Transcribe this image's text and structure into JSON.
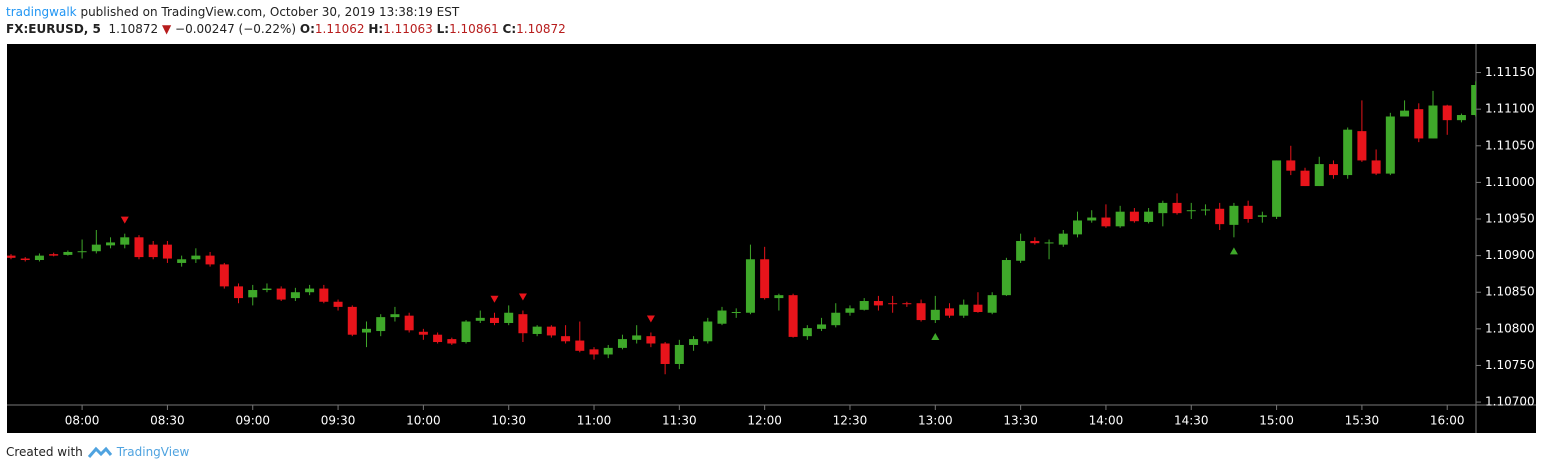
{
  "header": {
    "author": "tradingwalk",
    "published": "published on TradingView.com, October 30, 2019 13:38:19 EST",
    "symbol": "FX:EURUSD, 5",
    "last": "1.10872",
    "direction": "▼",
    "change": "−0.00247 (−0.22%)",
    "ohlc": [
      {
        "label": "O:",
        "value": "1.11062"
      },
      {
        "label": "H:",
        "value": "1.11063"
      },
      {
        "label": "L:",
        "value": "1.10861"
      },
      {
        "label": "C:",
        "value": "1.10872"
      }
    ]
  },
  "chart_data": {
    "type": "candlestick",
    "up_color": "#3fa82a",
    "down_color": "#e8141b",
    "background": "#000000",
    "categories": [
      null,
      null,
      null,
      null,
      null,
      "08:00",
      null,
      null,
      null,
      null,
      null,
      "08:30",
      null,
      null,
      null,
      null,
      null,
      "09:00",
      null,
      null,
      null,
      null,
      null,
      "09:30",
      null,
      null,
      null,
      null,
      null,
      "10:00",
      null,
      null,
      null,
      null,
      null,
      "10:30",
      null,
      null,
      null,
      null,
      null,
      "11:00",
      null,
      null,
      null,
      null,
      null,
      "11:30",
      null,
      null,
      null,
      null,
      null,
      "12:00",
      null,
      null,
      null,
      null,
      null,
      "12:30",
      null,
      null,
      null,
      null,
      null,
      "13:00",
      null,
      null,
      null,
      null,
      null,
      "13:30",
      null,
      null,
      null,
      null,
      null,
      "14:00",
      null,
      null,
      null,
      null,
      null,
      "14:30",
      null,
      null,
      null,
      null,
      null,
      "15:00",
      null,
      null,
      null,
      null,
      null,
      "15:30",
      null,
      null,
      null,
      null,
      null,
      "16:00",
      null,
      null
    ],
    "open": [
      1.109,
      1.10896,
      1.10894,
      1.10902,
      1.10901,
      1.10905,
      1.10906,
      1.10914,
      1.10915,
      1.10925,
      1.10915,
      1.10915,
      1.1089,
      1.10895,
      1.109,
      1.10888,
      1.10858,
      1.10843,
      1.10853,
      1.10855,
      1.10842,
      1.1085,
      1.10855,
      1.10837,
      1.1083,
      1.10795,
      1.10797,
      1.10816,
      1.10818,
      1.10796,
      1.10792,
      1.10786,
      1.10782,
      1.10811,
      1.10815,
      1.10808,
      1.1082,
      1.10793,
      1.10803,
      1.1079,
      1.10784,
      1.10772,
      1.10765,
      1.10774,
      1.10785,
      1.1079,
      1.1078,
      1.10752,
      1.10778,
      1.10783,
      1.10807,
      1.10822,
      1.10822,
      1.10895,
      1.10842,
      1.10846,
      1.1079,
      1.108,
      1.10805,
      1.10822,
      1.10826,
      1.10838,
      1.10835,
      1.10835,
      1.10835,
      1.10812,
      1.10828,
      1.10818,
      1.10833,
      1.10822,
      1.10846,
      1.10893,
      1.1092,
      1.10917,
      1.10915,
      1.10929,
      1.10948,
      1.10952,
      1.1094,
      1.1096,
      1.10946,
      1.10958,
      1.10972,
      1.10961,
      1.10962,
      1.10964,
      1.10942,
      1.10968,
      1.10953,
      1.10953,
      1.1103,
      1.11016,
      1.10995,
      1.11025,
      1.1101,
      1.1107,
      1.1103,
      1.11012,
      1.1109,
      1.111,
      1.1106,
      1.11105,
      1.11085,
      1.11092
    ],
    "high": [
      1.10902,
      1.10898,
      1.10903,
      1.10904,
      1.10907,
      1.10922,
      1.10935,
      1.10925,
      1.1093,
      1.10928,
      1.1092,
      1.1092,
      1.109,
      1.1091,
      1.10905,
      1.1089,
      1.10862,
      1.1086,
      1.10862,
      1.10858,
      1.10856,
      1.1086,
      1.1086,
      1.1084,
      1.10832,
      1.1081,
      1.1082,
      1.1083,
      1.10822,
      1.108,
      1.10795,
      1.10788,
      1.10812,
      1.10825,
      1.10822,
      1.10832,
      1.10825,
      1.10805,
      1.10805,
      1.10805,
      1.1081,
      1.10775,
      1.10778,
      1.10792,
      1.10805,
      1.10795,
      1.10782,
      1.10785,
      1.1079,
      1.10815,
      1.1083,
      1.10828,
      1.10915,
      1.10912,
      1.10848,
      1.10848,
      1.10805,
      1.10815,
      1.10835,
      1.10832,
      1.10842,
      1.10845,
      1.10845,
      1.10837,
      1.1084,
      1.10845,
      1.10835,
      1.1084,
      1.1085,
      1.1085,
      1.10897,
      1.1093,
      1.10925,
      1.10922,
      1.10935,
      1.1096,
      1.10962,
      1.1097,
      1.10968,
      1.10965,
      1.10965,
      1.10975,
      1.10985,
      1.10972,
      1.1097,
      1.10972,
      1.10972,
      1.10975,
      1.1096,
      1.1103,
      1.1105,
      1.1102,
      1.11035,
      1.1103,
      1.11075,
      1.11112,
      1.11045,
      1.11095,
      1.11112,
      1.11108,
      1.11125,
      1.11106,
      1.11094,
      1.11138
    ],
    "low": [
      1.10895,
      1.10892,
      1.10892,
      1.10899,
      1.109,
      1.10896,
      1.10903,
      1.1091,
      1.1091,
      1.10895,
      1.10895,
      1.1089,
      1.10885,
      1.1089,
      1.10885,
      1.10855,
      1.10835,
      1.10832,
      1.1085,
      1.10838,
      1.10838,
      1.10846,
      1.10835,
      1.10825,
      1.1079,
      1.10775,
      1.1079,
      1.1081,
      1.10795,
      1.10785,
      1.1078,
      1.10778,
      1.1078,
      1.10808,
      1.10805,
      1.10805,
      1.10782,
      1.1079,
      1.10788,
      1.1078,
      1.10768,
      1.10758,
      1.1076,
      1.10772,
      1.1078,
      1.10775,
      1.10738,
      1.10745,
      1.1077,
      1.1078,
      1.10805,
      1.10815,
      1.1082,
      1.1084,
      1.10825,
      1.10788,
      1.10785,
      1.10797,
      1.10802,
      1.10818,
      1.10825,
      1.10825,
      1.10822,
      1.1083,
      1.1081,
      1.10808,
      1.10815,
      1.10815,
      1.10822,
      1.1082,
      1.10845,
      1.1089,
      1.10915,
      1.10895,
      1.10912,
      1.10925,
      1.10945,
      1.10938,
      1.10938,
      1.10945,
      1.10944,
      1.1094,
      1.10956,
      1.1095,
      1.10955,
      1.10935,
      1.10925,
      1.10945,
      1.10945,
      1.1095,
      1.1101,
      1.10995,
      1.10995,
      1.11005,
      1.11005,
      1.11028,
      1.1101,
      1.1101,
      1.1109,
      1.11055,
      1.1106,
      1.11065,
      1.11082,
      1.1109
    ],
    "close": [
      1.10897,
      1.10894,
      1.109,
      1.109,
      1.10905,
      1.10906,
      1.10915,
      1.10918,
      1.10925,
      1.10898,
      1.10898,
      1.10896,
      1.10895,
      1.109,
      1.10888,
      1.10858,
      1.10842,
      1.10853,
      1.10855,
      1.1084,
      1.1085,
      1.10855,
      1.10837,
      1.1083,
      1.10792,
      1.108,
      1.10816,
      1.1082,
      1.10798,
      1.10792,
      1.10782,
      1.1078,
      1.1081,
      1.10815,
      1.10808,
      1.10822,
      1.10794,
      1.10803,
      1.10791,
      1.10783,
      1.1077,
      1.10765,
      1.10774,
      1.10786,
      1.10791,
      1.1078,
      1.10752,
      1.10778,
      1.10786,
      1.1081,
      1.10825,
      1.10823,
      1.10895,
      1.10842,
      1.10846,
      1.10789,
      1.10801,
      1.10806,
      1.10822,
      1.10828,
      1.10838,
      1.10832,
      1.10834,
      1.10834,
      1.10812,
      1.10826,
      1.10818,
      1.10833,
      1.10823,
      1.10846,
      1.10894,
      1.1092,
      1.10917,
      1.10918,
      1.1093,
      1.10948,
      1.10952,
      1.1094,
      1.1096,
      1.10947,
      1.1096,
      1.10972,
      1.10958,
      1.10962,
      1.10963,
      1.10943,
      1.10968,
      1.1095,
      1.10955,
      1.1103,
      1.11016,
      1.10995,
      1.11025,
      1.1101,
      1.11072,
      1.1103,
      1.11012,
      1.1109,
      1.11098,
      1.1106,
      1.11105,
      1.11085,
      1.11092,
      1.11133
    ],
    "markers": [
      {
        "index": 8,
        "kind": "sell"
      },
      {
        "index": 34,
        "kind": "sell"
      },
      {
        "index": 36,
        "kind": "sell"
      },
      {
        "index": 45,
        "kind": "sell"
      },
      {
        "index": 65,
        "kind": "buy"
      },
      {
        "index": 86,
        "kind": "buy"
      }
    ],
    "ylim": [
      1.10696,
      1.11189
    ],
    "yticks": [
      {
        "value": 1.1115,
        "label": "1.11150"
      },
      {
        "value": 1.111,
        "label": "1.11100"
      },
      {
        "value": 1.1105,
        "label": "1.11050"
      },
      {
        "value": 1.11,
        "label": "1.11000"
      },
      {
        "value": 1.1095,
        "label": "1.10950"
      },
      {
        "value": 1.109,
        "label": "1.10900"
      },
      {
        "value": 1.1085,
        "label": "1.10850"
      },
      {
        "value": 1.108,
        "label": "1.10800"
      },
      {
        "value": 1.1075,
        "label": "1.10750"
      },
      {
        "value": 1.107,
        "label": "1.10700"
      }
    ],
    "grid": false
  },
  "footer": {
    "text": "Created with",
    "brand": "TradingView"
  }
}
